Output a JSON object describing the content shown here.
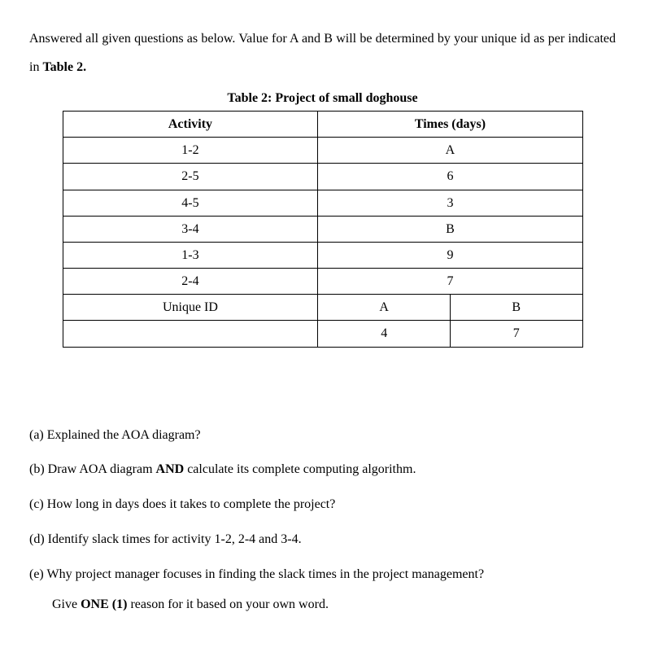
{
  "intro": {
    "line1_part1": "Answered all given questions as below. Value for A and B will be determined by your unique",
    "line2_part1": "id as per indicated in ",
    "line2_bold": "Table 2."
  },
  "table": {
    "title": "Table 2: Project of small doghouse",
    "header_activity": "Activity",
    "header_times": "Times (days)",
    "rows": [
      {
        "activity": "1-2",
        "time": "A"
      },
      {
        "activity": "2-5",
        "time": "6"
      },
      {
        "activity": "4-5",
        "time": "3"
      },
      {
        "activity": "3-4",
        "time": "B"
      },
      {
        "activity": "1-3",
        "time": "9"
      },
      {
        "activity": "2-4",
        "time": "7"
      }
    ],
    "unique_id_label": "Unique ID",
    "col_a_label": "A",
    "col_b_label": "B",
    "col_a_value": "4",
    "col_b_value": "7"
  },
  "questions": {
    "a": "(a) Explained the AOA diagram?",
    "b_part1": "(b) Draw AOA diagram ",
    "b_bold": "AND",
    "b_part2": " calculate its complete computing algorithm.",
    "c": "(c) How long in days does it takes to complete the project?",
    "d": "(d) Identify slack times for activity 1-2, 2-4 and 3-4.",
    "e_line1": "(e) Why project manager focuses in finding the slack times in the project management?",
    "e_line2_part1": "Give ",
    "e_line2_bold": "ONE (1)",
    "e_line2_part2": " reason for it based on your own word."
  }
}
